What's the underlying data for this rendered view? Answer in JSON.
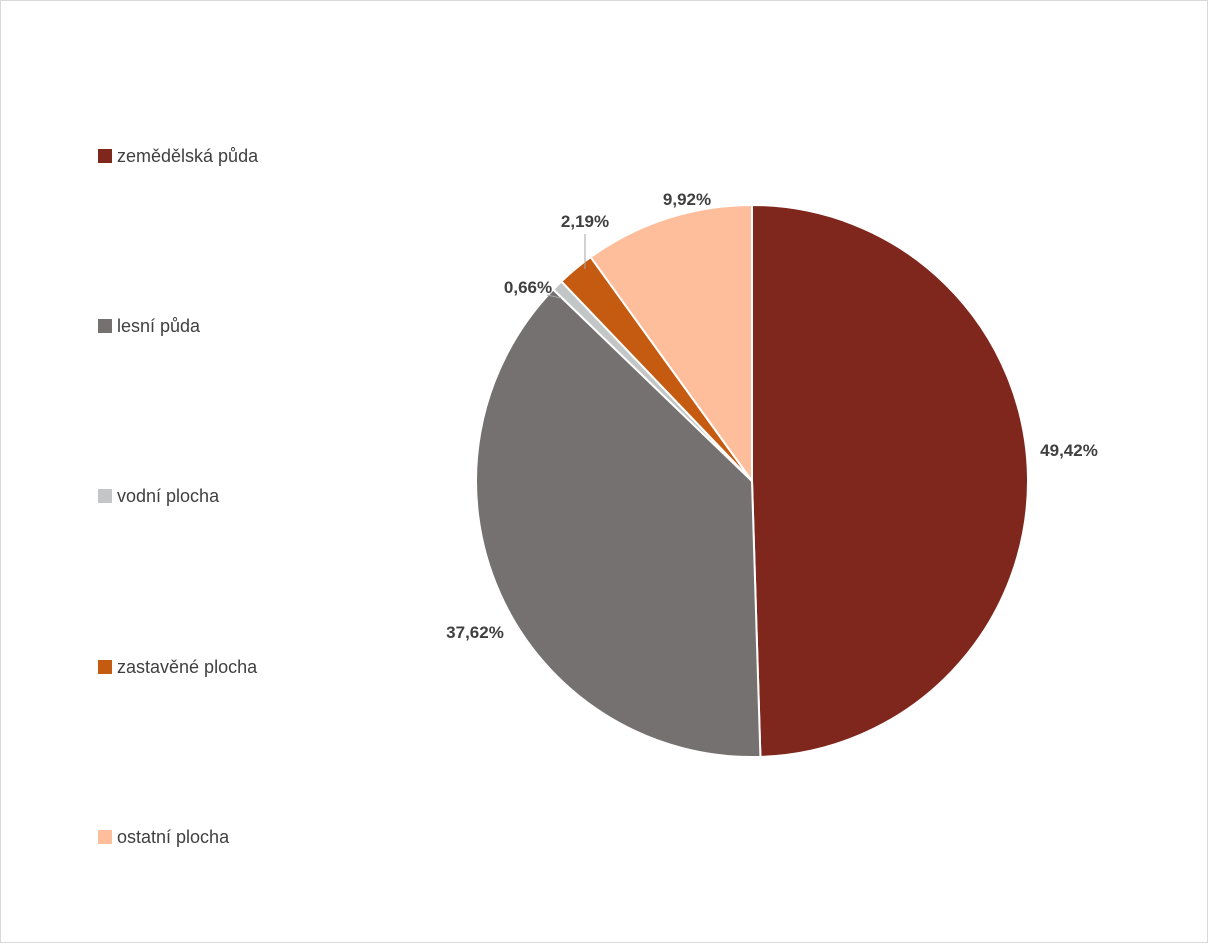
{
  "chart_data": {
    "type": "pie",
    "title": "",
    "categories": [
      "zemědělská půda",
      "lesní půda",
      "vodní plocha",
      "zastavěné plocha",
      "ostatní plocha"
    ],
    "values": [
      49.42,
      37.62,
      0.66,
      2.19,
      9.92
    ],
    "data_labels": [
      "49,42%",
      "37,62%",
      "0,66%",
      "2,19%",
      "9,92%"
    ],
    "colors": [
      "#7f271d",
      "#767171",
      "#c2c6c6",
      "#c55a11",
      "#ffbe9b"
    ],
    "start_angle": "12 o'clock",
    "direction": "clockwise",
    "legend_position": "left",
    "slice_border": "white"
  }
}
